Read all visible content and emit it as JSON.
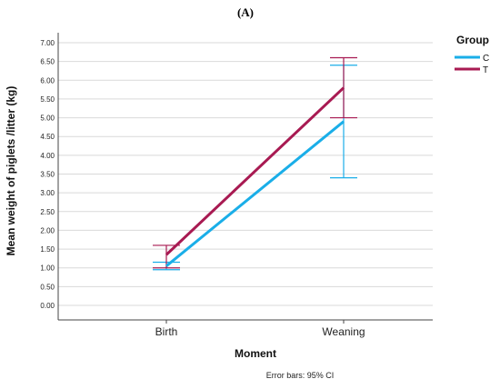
{
  "chart_data": {
    "type": "line",
    "title": "(A)",
    "xlabel": "Moment",
    "ylabel": "Mean weight of piglets /litter  (kg)",
    "categories": [
      "Birth",
      "Weaning"
    ],
    "ylim": [
      0,
      7
    ],
    "yticks": [
      "0.00",
      "0.50",
      "1.00",
      "1.50",
      "2.00",
      "2.50",
      "3.00",
      "3.50",
      "4.00",
      "4.50",
      "5.00",
      "5.50",
      "6.00",
      "6.50",
      "7.00"
    ],
    "grid": true,
    "legend": {
      "title": "Group",
      "position": "right"
    },
    "series": [
      {
        "name": "C",
        "color": "#1aaee8",
        "values": [
          1.05,
          4.9
        ],
        "ci_low": [
          0.95,
          3.4
        ],
        "ci_high": [
          1.15,
          6.4
        ]
      },
      {
        "name": "T",
        "color": "#a81a52",
        "values": [
          1.35,
          5.8
        ],
        "ci_low": [
          1.0,
          5.0
        ],
        "ci_high": [
          1.6,
          6.6
        ]
      }
    ],
    "note": "Error bars: 95% CI"
  }
}
